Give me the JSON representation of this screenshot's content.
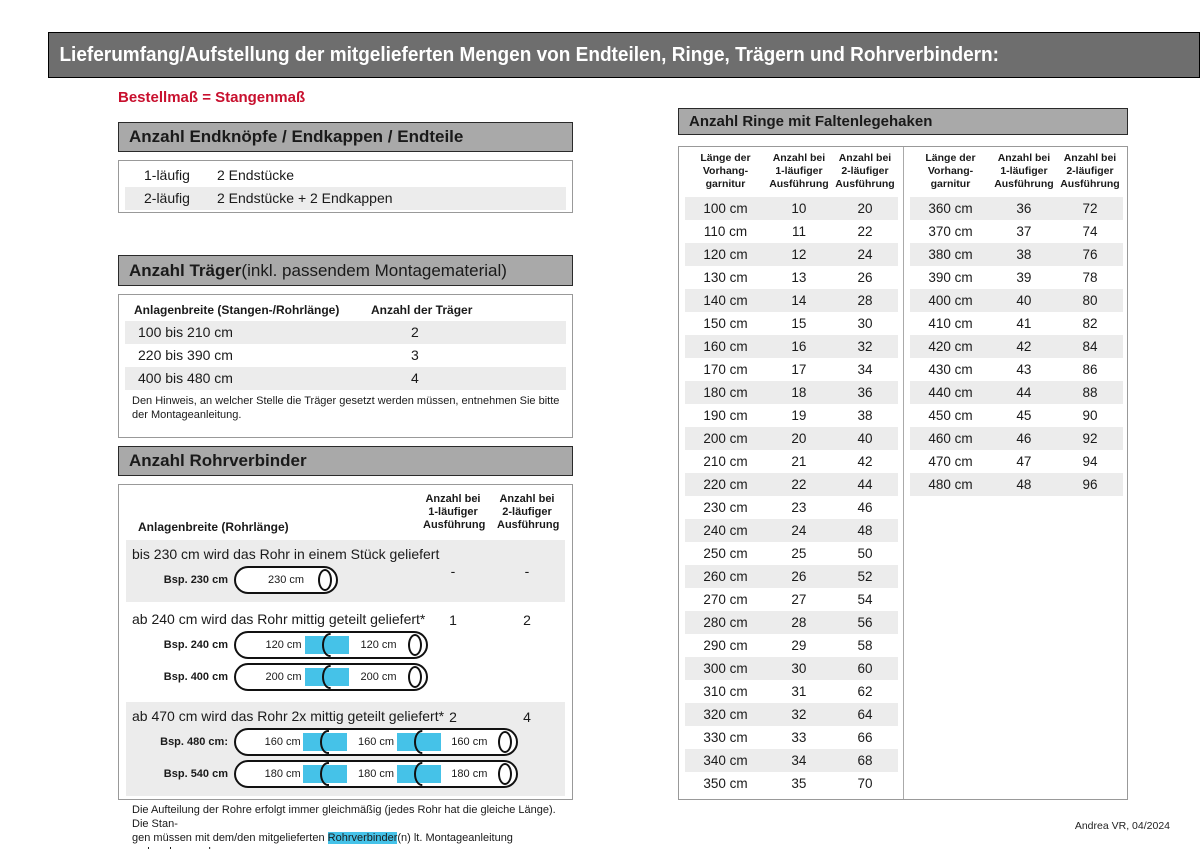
{
  "title_bar": {
    "title": "Lieferumfang/Aufstellung der mitgelieferten Mengen von Endteilen, Ringe, Trägern und Rohrverbindern:"
  },
  "subtitle": "Bestellmaß = Stangenmaß",
  "footer": "Andrea VR, 04/2024",
  "colors": {
    "title_bar_bg": "#6e6e6e",
    "section_bar_bg": "#a9a9a9",
    "row_stripe": "#ececec",
    "accent_red": "#c8102e",
    "connector_blue": "#45c2e8"
  },
  "endteile": {
    "header": "Anzahl Endknöpfe / Endkappen / Endteile",
    "rows": [
      {
        "label": "1-läufig",
        "value": "2 Endstücke"
      },
      {
        "label": "2-läufig",
        "value": "2 Endstücke + 2 Endkappen"
      }
    ]
  },
  "traeger": {
    "header_bold": "Anzahl Träger",
    "header_rest": " (inkl. passendem Montagematerial)",
    "col1": "Anlagenbreite (Stangen-/Rohrlänge)",
    "col2": "Anzahl der Träger",
    "rows": [
      {
        "range": "100 bis 210 cm",
        "count": "2"
      },
      {
        "range": "220 bis 390 cm",
        "count": "3"
      },
      {
        "range": "400 bis 480 cm",
        "count": "4"
      }
    ],
    "note": "Den Hinweis, an welcher Stelle die Träger gesetzt werden müssen, entnehmen Sie bitte\nder Montageanleitung."
  },
  "rohrverbinder": {
    "header": "Anzahl Rohrverbinder",
    "col1": "Anlagenbreite (Rohrlänge)",
    "col2": "Anzahl bei\n1-läufiger\nAusführung",
    "col3": "Anzahl bei\n2-läufiger\nAusführung",
    "blocks": [
      {
        "text": "bis 230 cm wird das Rohr in einem Stück geliefert",
        "val1": "-",
        "val2": "-",
        "examples": [
          {
            "label": "Bsp. 230 cm",
            "segments": [
              "230 cm"
            ]
          }
        ]
      },
      {
        "text": "ab 240 cm wird das Rohr mittig geteilt geliefert*",
        "val1": "1",
        "val2": "2",
        "examples": [
          {
            "label": "Bsp. 240 cm",
            "segments": [
              "120 cm",
              "120 cm"
            ]
          },
          {
            "label": "Bsp. 400 cm",
            "segments": [
              "200 cm",
              "200 cm"
            ]
          }
        ]
      },
      {
        "text": "ab 470 cm wird das Rohr 2x mittig geteilt geliefert*",
        "val1": "2",
        "val2": "4",
        "examples": [
          {
            "label": "Bsp. 480 cm:",
            "segments": [
              "160 cm",
              "160 cm",
              "160 cm"
            ]
          },
          {
            "label": "Bsp. 540 cm",
            "segments": [
              "180 cm",
              "180 cm",
              "180 cm"
            ]
          }
        ]
      }
    ],
    "note_before": "Die Aufteilung der Rohre erfolgt immer gleichmäßig (jedes Rohr hat die gleiche Länge). Die Stan-\ngen müssen mit dem/den mitgelieferten ",
    "note_highlight": "Rohrverbinder",
    "note_after": "(n) lt. Montageanleitung verbunden werden."
  },
  "ringe": {
    "header": "Anzahl Ringe mit Faltenlegehaken",
    "col1": "Länge der\nVorhang-\ngarnitur",
    "col2": "Anzahl bei\n1-läufiger\nAusführung",
    "col3": "Anzahl bei\n2-läufiger\nAusführung",
    "table1": [
      [
        "100 cm",
        "10",
        "20"
      ],
      [
        "110 cm",
        "11",
        "22"
      ],
      [
        "120 cm",
        "12",
        "24"
      ],
      [
        "130 cm",
        "13",
        "26"
      ],
      [
        "140 cm",
        "14",
        "28"
      ],
      [
        "150 cm",
        "15",
        "30"
      ],
      [
        "160 cm",
        "16",
        "32"
      ],
      [
        "170 cm",
        "17",
        "34"
      ],
      [
        "180 cm",
        "18",
        "36"
      ],
      [
        "190 cm",
        "19",
        "38"
      ],
      [
        "200 cm",
        "20",
        "40"
      ],
      [
        "210 cm",
        "21",
        "42"
      ],
      [
        "220 cm",
        "22",
        "44"
      ],
      [
        "230 cm",
        "23",
        "46"
      ],
      [
        "240 cm",
        "24",
        "48"
      ],
      [
        "250 cm",
        "25",
        "50"
      ],
      [
        "260 cm",
        "26",
        "52"
      ],
      [
        "270 cm",
        "27",
        "54"
      ],
      [
        "280 cm",
        "28",
        "56"
      ],
      [
        "290 cm",
        "29",
        "58"
      ],
      [
        "300 cm",
        "30",
        "60"
      ],
      [
        "310 cm",
        "31",
        "62"
      ],
      [
        "320 cm",
        "32",
        "64"
      ],
      [
        "330 cm",
        "33",
        "66"
      ],
      [
        "340 cm",
        "34",
        "68"
      ],
      [
        "350 cm",
        "35",
        "70"
      ]
    ],
    "table2": [
      [
        "360 cm",
        "36",
        "72"
      ],
      [
        "370 cm",
        "37",
        "74"
      ],
      [
        "380 cm",
        "38",
        "76"
      ],
      [
        "390 cm",
        "39",
        "78"
      ],
      [
        "400 cm",
        "40",
        "80"
      ],
      [
        "410 cm",
        "41",
        "82"
      ],
      [
        "420 cm",
        "42",
        "84"
      ],
      [
        "430 cm",
        "43",
        "86"
      ],
      [
        "440 cm",
        "44",
        "88"
      ],
      [
        "450 cm",
        "45",
        "90"
      ],
      [
        "460 cm",
        "46",
        "92"
      ],
      [
        "470 cm",
        "47",
        "94"
      ],
      [
        "480 cm",
        "48",
        "96"
      ]
    ]
  }
}
